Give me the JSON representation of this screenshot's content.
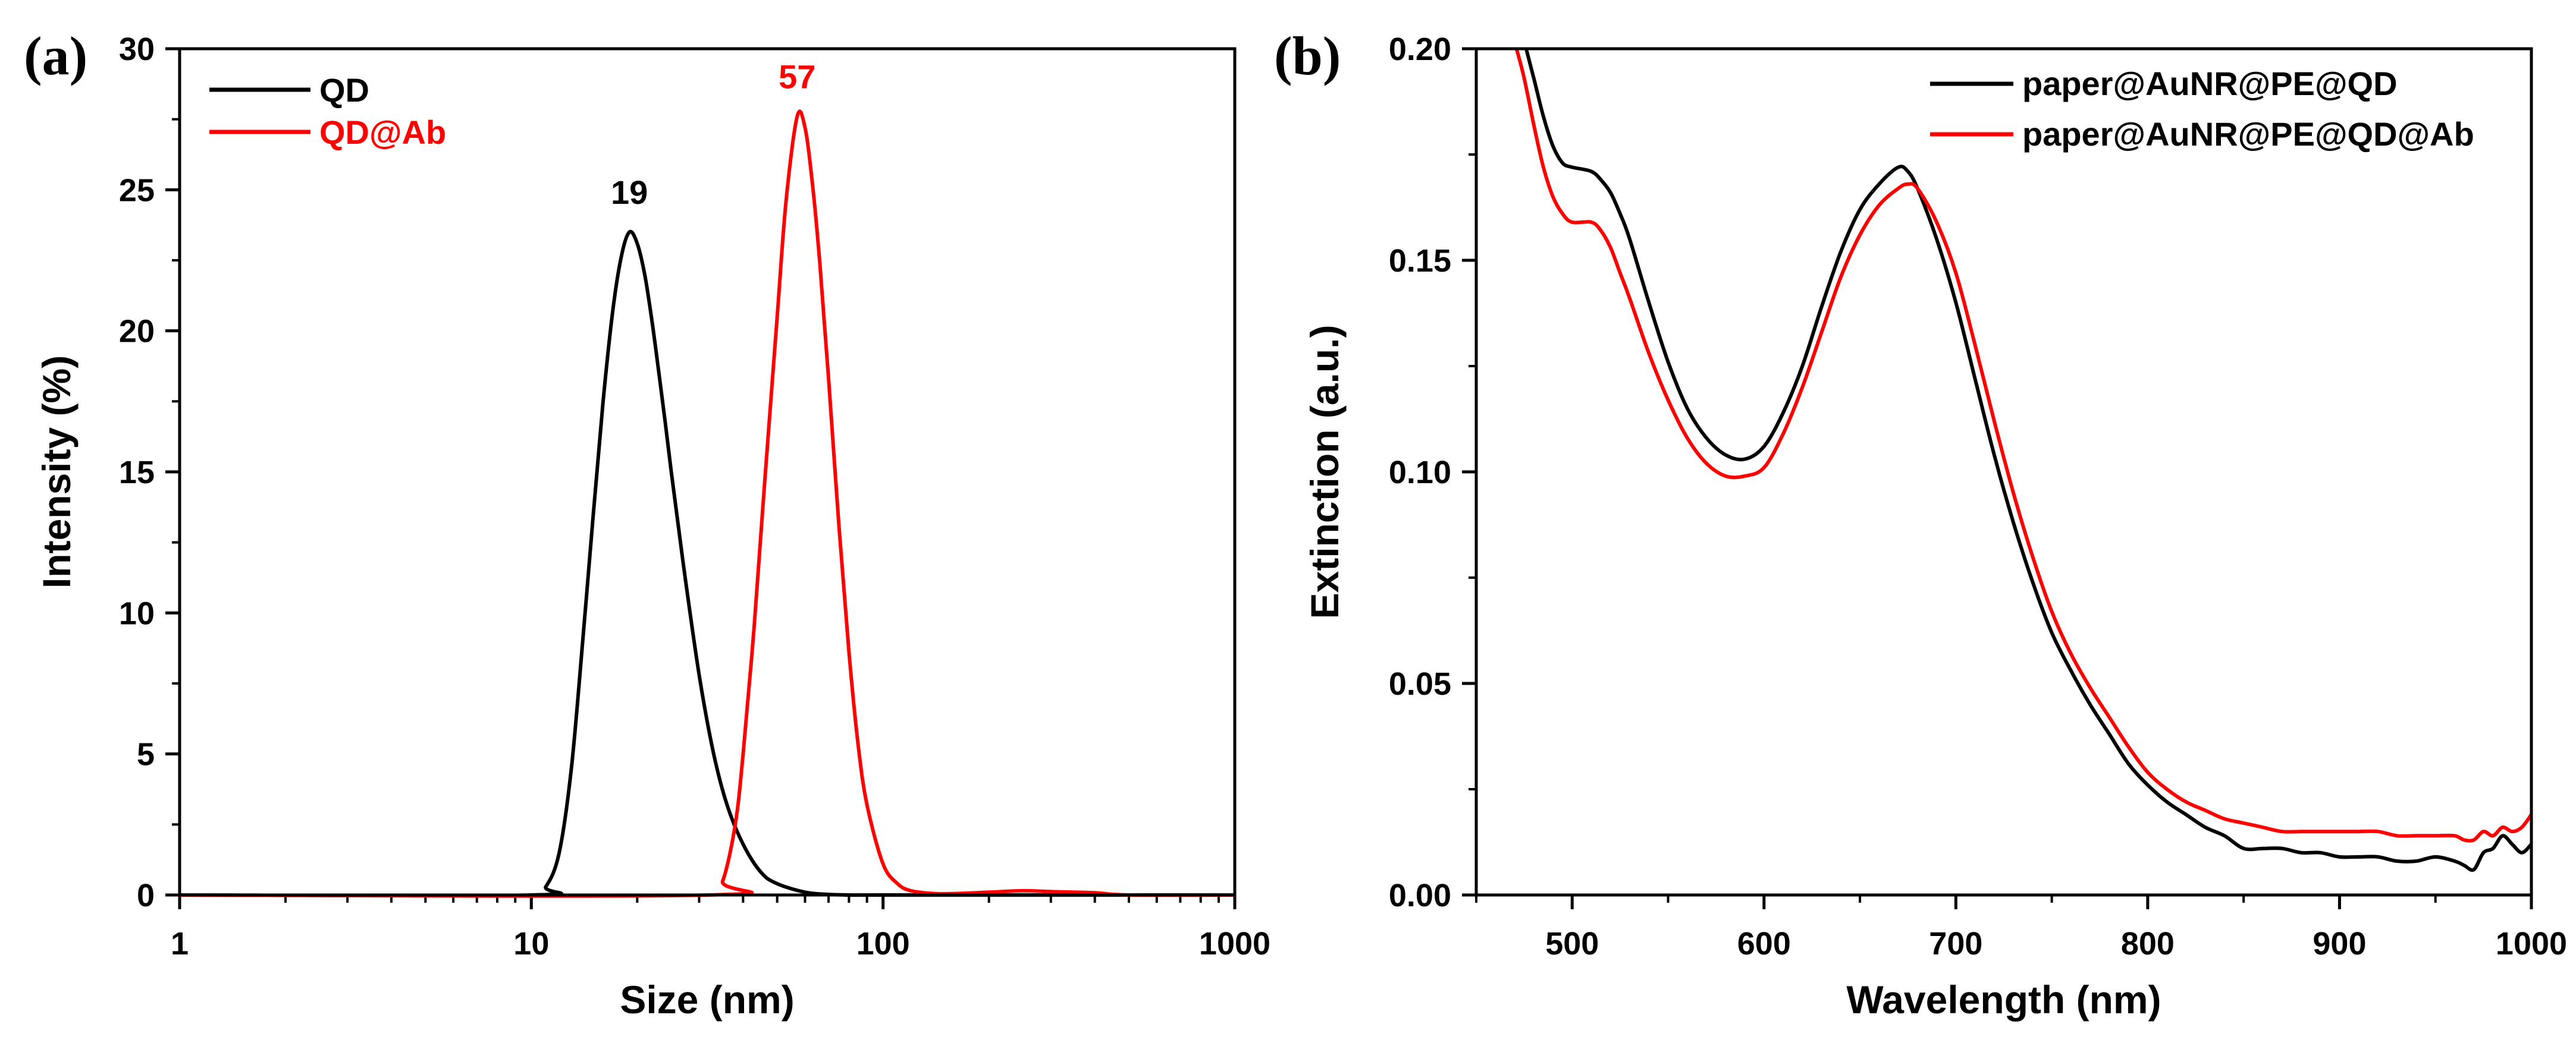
{
  "chart_data": [
    {
      "panel_label": "(a)",
      "type": "line",
      "x_scale": "log",
      "xlabel": "Size (nm)",
      "ylabel": "Intensity (%)",
      "xlim": [
        1,
        1000
      ],
      "ylim": [
        0,
        30
      ],
      "x_ticks": [
        "1",
        "10",
        "100",
        "1000"
      ],
      "y_ticks": [
        "0",
        "5",
        "10",
        "15",
        "20",
        "25",
        "30"
      ],
      "legend_position": "top-left",
      "series": [
        {
          "name": "QD",
          "color": "#000000",
          "x": [
            1,
            10,
            11,
            12,
            13,
            14,
            15,
            16,
            17,
            18,
            19,
            20,
            21,
            22,
            23,
            24,
            25,
            27,
            30,
            33,
            36,
            40,
            45,
            50,
            60,
            70,
            80,
            100,
            1000
          ],
          "y": [
            0,
            0,
            0.3,
            1.5,
            4.5,
            9,
            13.5,
            17.5,
            20.6,
            22.6,
            23.5,
            23.1,
            22,
            20.4,
            18.6,
            16.8,
            15,
            11.8,
            7.8,
            5,
            3.2,
            1.8,
            0.8,
            0.4,
            0.1,
            0.02,
            0,
            0,
            0
          ]
        },
        {
          "name": "QD@Ab",
          "color": "#ff0000",
          "x": [
            1,
            32,
            35,
            38,
            40,
            43,
            46,
            50,
            53,
            57,
            60,
            63,
            66,
            70,
            75,
            80,
            85,
            90,
            100,
            110,
            120,
            140,
            160,
            200,
            250,
            300,
            400,
            500,
            1000
          ],
          "y": [
            0,
            0,
            0.5,
            2.5,
            5,
            9.5,
            14.5,
            20.5,
            24.6,
            27.6,
            27.2,
            25.2,
            22.5,
            18.3,
            13,
            8.6,
            5.3,
            3.2,
            1.1,
            0.4,
            0.15,
            0.05,
            0.05,
            0.1,
            0.15,
            0.12,
            0.08,
            0,
            0
          ]
        }
      ],
      "annotations": [
        {
          "text": "19",
          "x": 19,
          "y": 24.5,
          "color": "#000000"
        },
        {
          "text": "57",
          "x": 57,
          "y": 28.6,
          "color": "#ff0000"
        }
      ]
    },
    {
      "panel_label": "(b)",
      "type": "line",
      "x_scale": "linear",
      "xlabel": "Wavelength (nm)",
      "ylabel": "Extinction (a.u.)",
      "xlim": [
        450,
        1000
      ],
      "ylim": [
        0,
        0.2
      ],
      "x_ticks": [
        "500",
        "600",
        "700",
        "800",
        "900",
        "1000"
      ],
      "y_ticks": [
        "0.00",
        "0.05",
        "0.10",
        "0.15",
        "0.20"
      ],
      "legend_position": "top-right",
      "series": [
        {
          "name": "paper@AuNR@PE@QD",
          "color": "#000000",
          "x": [
            476,
            480,
            485,
            490,
            495,
            500,
            510,
            515,
            520,
            525,
            530,
            540,
            550,
            560,
            570,
            580,
            590,
            600,
            610,
            620,
            630,
            640,
            650,
            660,
            670,
            675,
            680,
            690,
            700,
            710,
            720,
            730,
            740,
            750,
            760,
            770,
            780,
            790,
            800,
            810,
            820,
            830,
            840,
            850,
            860,
            870,
            880,
            890,
            900,
            910,
            920,
            930,
            940,
            950,
            960,
            965,
            970,
            975,
            980,
            985,
            990,
            995,
            1000
          ],
          "y": [
            0.2,
            0.193,
            0.184,
            0.177,
            0.173,
            0.172,
            0.171,
            0.169,
            0.166,
            0.161,
            0.155,
            0.14,
            0.126,
            0.115,
            0.108,
            0.104,
            0.103,
            0.106,
            0.114,
            0.125,
            0.139,
            0.152,
            0.162,
            0.168,
            0.172,
            0.171,
            0.167,
            0.155,
            0.14,
            0.122,
            0.104,
            0.088,
            0.074,
            0.062,
            0.053,
            0.045,
            0.038,
            0.031,
            0.026,
            0.022,
            0.019,
            0.016,
            0.014,
            0.011,
            0.011,
            0.011,
            0.01,
            0.01,
            0.009,
            0.009,
            0.009,
            0.008,
            0.008,
            0.009,
            0.008,
            0.007,
            0.006,
            0.01,
            0.011,
            0.014,
            0.012,
            0.01,
            0.012
          ]
        },
        {
          "name": "paper@AuNR@PE@QD@Ab",
          "color": "#ff0000",
          "x": [
            471,
            475,
            480,
            485,
            490,
            495,
            500,
            510,
            515,
            520,
            525,
            530,
            540,
            550,
            560,
            570,
            580,
            590,
            600,
            610,
            620,
            630,
            640,
            650,
            660,
            670,
            675,
            680,
            690,
            700,
            710,
            720,
            730,
            740,
            750,
            760,
            770,
            780,
            790,
            800,
            810,
            820,
            830,
            840,
            850,
            860,
            870,
            880,
            890,
            900,
            910,
            920,
            930,
            940,
            950,
            960,
            965,
            970,
            975,
            980,
            985,
            990,
            995,
            1000
          ],
          "y": [
            0.2,
            0.193,
            0.182,
            0.172,
            0.165,
            0.161,
            0.159,
            0.159,
            0.157,
            0.153,
            0.147,
            0.141,
            0.128,
            0.117,
            0.108,
            0.102,
            0.099,
            0.099,
            0.101,
            0.109,
            0.12,
            0.133,
            0.146,
            0.156,
            0.163,
            0.167,
            0.168,
            0.167,
            0.159,
            0.147,
            0.13,
            0.112,
            0.095,
            0.08,
            0.067,
            0.057,
            0.049,
            0.042,
            0.035,
            0.029,
            0.025,
            0.022,
            0.02,
            0.018,
            0.017,
            0.016,
            0.015,
            0.015,
            0.015,
            0.015,
            0.015,
            0.015,
            0.014,
            0.014,
            0.014,
            0.014,
            0.013,
            0.013,
            0.015,
            0.014,
            0.016,
            0.015,
            0.016,
            0.019
          ]
        }
      ]
    }
  ]
}
